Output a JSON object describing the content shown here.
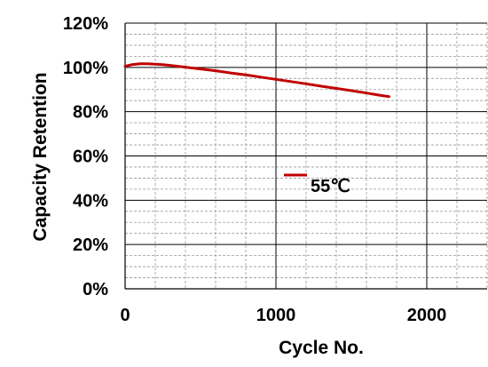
{
  "chart_data": {
    "type": "line",
    "title": "",
    "xlabel": "Cycle No.",
    "ylabel": "Capacity Retention",
    "xlim": [
      0,
      2400
    ],
    "ylim": [
      0,
      120
    ],
    "x_ticks": [
      0,
      1000,
      2000
    ],
    "x_tick_labels": [
      "0",
      "1000",
      "2000"
    ],
    "y_ticks": [
      0,
      20,
      40,
      60,
      80,
      100,
      120
    ],
    "y_tick_labels": [
      "0%",
      "20%",
      "40%",
      "60%",
      "80%",
      "100%",
      "120%"
    ],
    "grid": true,
    "legend_position": "center",
    "series": [
      {
        "name": "55℃",
        "color": "#c00000",
        "x": [
          0,
          50,
          100,
          150,
          200,
          250,
          300,
          400,
          500,
          600,
          700,
          800,
          900,
          1000,
          1100,
          1200,
          1300,
          1400,
          1500,
          1600,
          1700,
          1750
        ],
        "y": [
          100.5,
          101.3,
          101.6,
          101.6,
          101.4,
          101.2,
          100.9,
          100.1,
          99.3,
          98.5,
          97.5,
          96.6,
          95.6,
          94.6,
          93.6,
          92.6,
          91.5,
          90.5,
          89.5,
          88.4,
          87.3,
          86.8
        ]
      }
    ]
  }
}
